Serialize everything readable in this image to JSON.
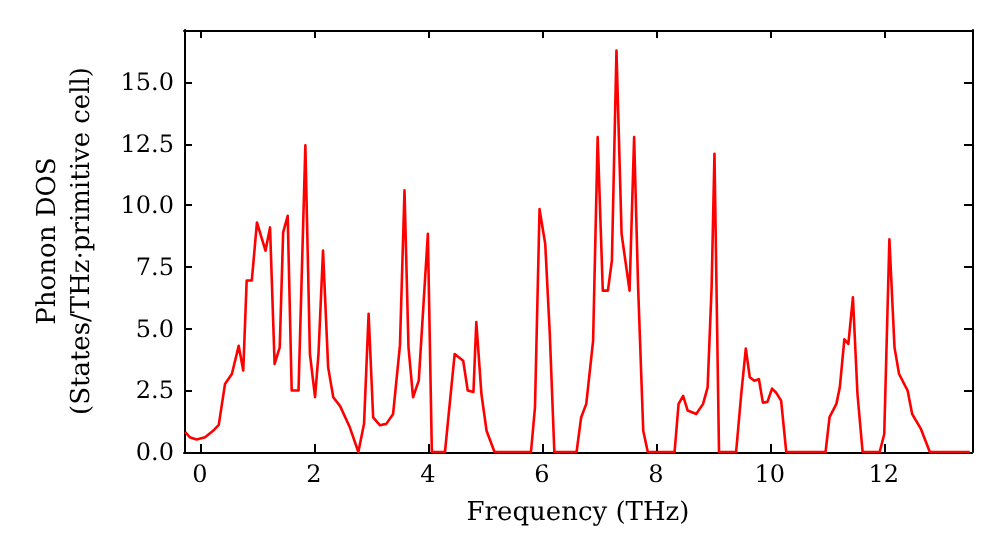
{
  "chart_data": {
    "type": "line",
    "xlabel": "Frequency (THz)",
    "ylabel": "Phonon DOS\n(States/THz·primitive cell)",
    "marker": "none",
    "line_style": "solid",
    "grid": false,
    "xlim": [
      -0.28,
      13.55
    ],
    "ylim": [
      0,
      17.1
    ],
    "xticks": [
      0,
      2,
      4,
      6,
      8,
      10,
      12
    ],
    "yticks": [
      {
        "value": 0,
        "label": "0.0"
      },
      {
        "value": 2.5,
        "label": "2.5"
      },
      {
        "value": 5,
        "label": "5.0"
      },
      {
        "value": 7.5,
        "label": "7.5"
      },
      {
        "value": 10,
        "label": "10.0"
      },
      {
        "value": 12.5,
        "label": "12.5"
      },
      {
        "value": 15,
        "label": "15.0"
      }
    ],
    "series": [
      {
        "color": "#ff0000",
        "x": [
          -0.26,
          -0.18,
          -0.06,
          0.09,
          0.23,
          0.33,
          0.44,
          0.56,
          0.68,
          0.76,
          0.82,
          0.91,
          1.0,
          1.15,
          1.23,
          1.31,
          1.4,
          1.46,
          1.54,
          1.61,
          1.73,
          1.85,
          1.93,
          2.02,
          2.08,
          2.16,
          2.25,
          2.34,
          2.46,
          2.63,
          2.78,
          2.88,
          2.96,
          3.04,
          3.16,
          3.27,
          3.39,
          3.51,
          3.59,
          3.66,
          3.74,
          3.84,
          4.0,
          4.07,
          4.3,
          4.47,
          4.62,
          4.7,
          4.8,
          4.85,
          4.94,
          5.03,
          5.17,
          5.81,
          5.88,
          5.96,
          6.06,
          6.14,
          6.22,
          6.61,
          6.69,
          6.78,
          6.9,
          6.98,
          7.07,
          7.16,
          7.23,
          7.31,
          7.4,
          7.54,
          7.62,
          7.69,
          7.78,
          7.86,
          8.33,
          8.4,
          8.48,
          8.56,
          8.71,
          8.83,
          8.91,
          8.98,
          9.03,
          9.11,
          9.41,
          9.5,
          9.58,
          9.65,
          9.73,
          9.81,
          9.88,
          9.96,
          10.04,
          10.11,
          10.2,
          10.29,
          10.98,
          11.05,
          11.17,
          11.23,
          11.31,
          11.38,
          11.46,
          11.54,
          11.63,
          11.93,
          12.01,
          12.1,
          12.19,
          12.27,
          12.42,
          12.5,
          12.65,
          12.81,
          13.51
        ],
        "values": [
          0.81,
          0.6,
          0.51,
          0.6,
          0.86,
          1.1,
          2.76,
          3.16,
          4.3,
          3.3,
          6.95,
          6.95,
          9.3,
          8.16,
          9.1,
          3.57,
          4.24,
          8.9,
          9.57,
          2.49,
          2.49,
          12.43,
          3.97,
          2.22,
          3.97,
          8.16,
          3.43,
          2.22,
          1.86,
          1.0,
          0,
          1.14,
          5.6,
          1.4,
          1.08,
          1.14,
          1.54,
          4.32,
          10.6,
          4.24,
          2.22,
          2.89,
          8.84,
          0,
          0,
          3.97,
          3.7,
          2.49,
          2.43,
          5.27,
          2.35,
          0.86,
          0,
          0,
          1.81,
          9.84,
          8.43,
          4.78,
          0,
          0,
          1.4,
          1.95,
          4.5,
          12.76,
          6.54,
          6.54,
          7.76,
          16.27,
          8.84,
          6.54,
          12.76,
          6.68,
          0.86,
          0,
          0,
          1.95,
          2.27,
          1.68,
          1.54,
          1.95,
          2.62,
          6.68,
          12.08,
          0,
          0,
          2.35,
          4.19,
          3.03,
          2.89,
          2.95,
          2.0,
          2.03,
          2.57,
          2.41,
          2.08,
          0,
          0,
          1.41,
          1.95,
          2.62,
          4.57,
          4.38,
          6.27,
          2.35,
          0,
          0,
          0.73,
          8.62,
          4.24,
          3.16,
          2.49,
          1.54,
          0.95,
          0,
          0
        ]
      }
    ]
  }
}
